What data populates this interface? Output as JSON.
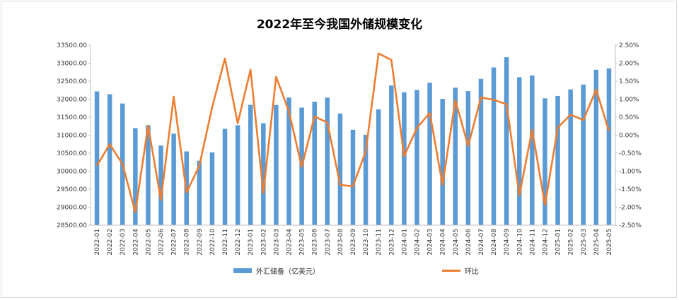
{
  "chart_data": {
    "type": "bar",
    "title": "2022年至今我国外储规模变化",
    "categories": [
      "2022-01",
      "2022-02",
      "2022-03",
      "2022-04",
      "2022-05",
      "2022-06",
      "2022-07",
      "2022-08",
      "2022-09",
      "2022-10",
      "2022-11",
      "2022-12",
      "2023-01",
      "2023-02",
      "2023-03",
      "2023-04",
      "2023-05",
      "2023-06",
      "2023-07",
      "2023-08",
      "2023-09",
      "2023-10",
      "2023-11",
      "2023-12",
      "2024-01",
      "2024-02",
      "2024-03",
      "2024-04",
      "2024-05",
      "2024-06",
      "2024-07",
      "2024-08",
      "2024-09",
      "2024-10",
      "2024-11",
      "2024-12",
      "2025-01",
      "2025-02",
      "2025-03",
      "2025-04",
      "2025-05"
    ],
    "series": [
      {
        "name": "外汇储备（亿美元）",
        "type": "bar",
        "axis": "left",
        "color": "#5b9bd5",
        "values": [
          32216,
          32138,
          31880,
          31197,
          31278,
          30713,
          31041,
          30549,
          30290,
          30524,
          31175,
          31277,
          31845,
          31332,
          31839,
          32048,
          31765,
          31930,
          32043,
          31601,
          31151,
          31012,
          31718,
          32380,
          32193,
          32258,
          32457,
          32008,
          32320,
          32224,
          32564,
          32882,
          33164,
          32610,
          32659,
          32024,
          32090,
          32272,
          32407,
          32817,
          32853
        ]
      },
      {
        "name": "环比",
        "type": "line",
        "axis": "right",
        "color": "#ed7d31",
        "values": [
          -0.85,
          -0.25,
          -0.8,
          -2.14,
          0.26,
          -1.8,
          1.07,
          -1.59,
          -0.85,
          0.77,
          2.13,
          0.33,
          1.82,
          -1.61,
          1.62,
          0.66,
          -0.88,
          0.52,
          0.35,
          -1.38,
          -1.42,
          -0.45,
          2.27,
          2.09,
          -0.58,
          0.2,
          0.62,
          -1.38,
          0.97,
          -0.3,
          1.05,
          0.98,
          0.86,
          -1.67,
          0.15,
          -1.94,
          0.21,
          0.57,
          0.42,
          1.27,
          0.11
        ]
      }
    ],
    "left_axis": {
      "min": 28500,
      "max": 33500,
      "step": 500,
      "decimals": 2
    },
    "right_axis": {
      "min": -2.5,
      "max": 2.5,
      "step": 0.5,
      "decimals": 2,
      "suffix": "%"
    },
    "legend": {
      "placement": "bottom",
      "items": [
        {
          "label": "外汇储备（亿美元）",
          "symbol": "bar",
          "color": "#5b9bd5"
        },
        {
          "label": "环比",
          "symbol": "line",
          "color": "#ed7d31"
        }
      ]
    },
    "grid": false
  }
}
